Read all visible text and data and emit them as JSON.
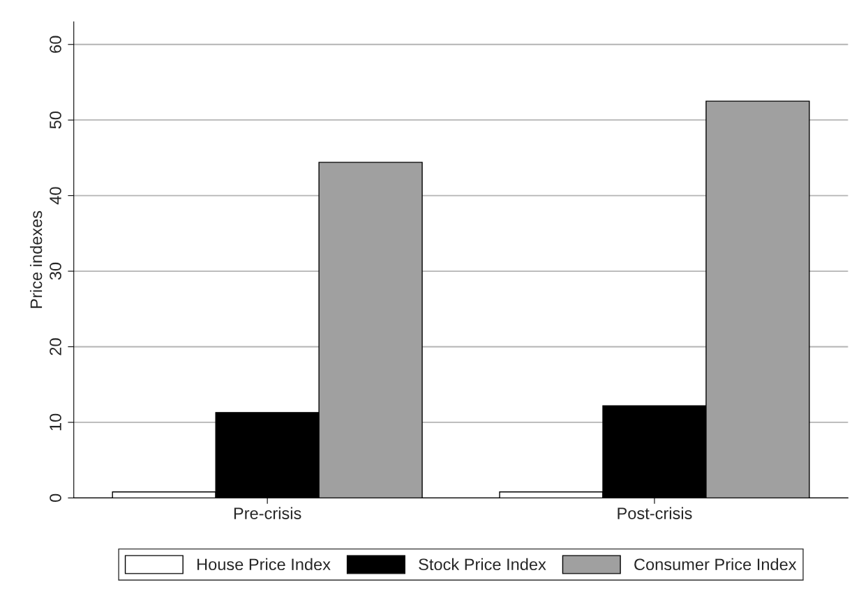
{
  "chart_data": {
    "type": "bar",
    "ylabel": "Price indexes",
    "categories": [
      "Pre-crisis",
      "Post-crisis"
    ],
    "series": [
      {
        "name": "House Price Index",
        "color": "#ffffff",
        "values": [
          0.8,
          0.8
        ]
      },
      {
        "name": "Stock Price Index",
        "color": "#000000",
        "values": [
          11.3,
          12.2
        ]
      },
      {
        "name": "Consumer Price Index",
        "color": "#a0a0a0",
        "values": [
          44.4,
          52.5
        ]
      }
    ],
    "ylim": [
      0,
      63
    ],
    "yticks": [
      0,
      10,
      20,
      30,
      40,
      50,
      60
    ],
    "grid": "y",
    "legend": "bottom"
  }
}
